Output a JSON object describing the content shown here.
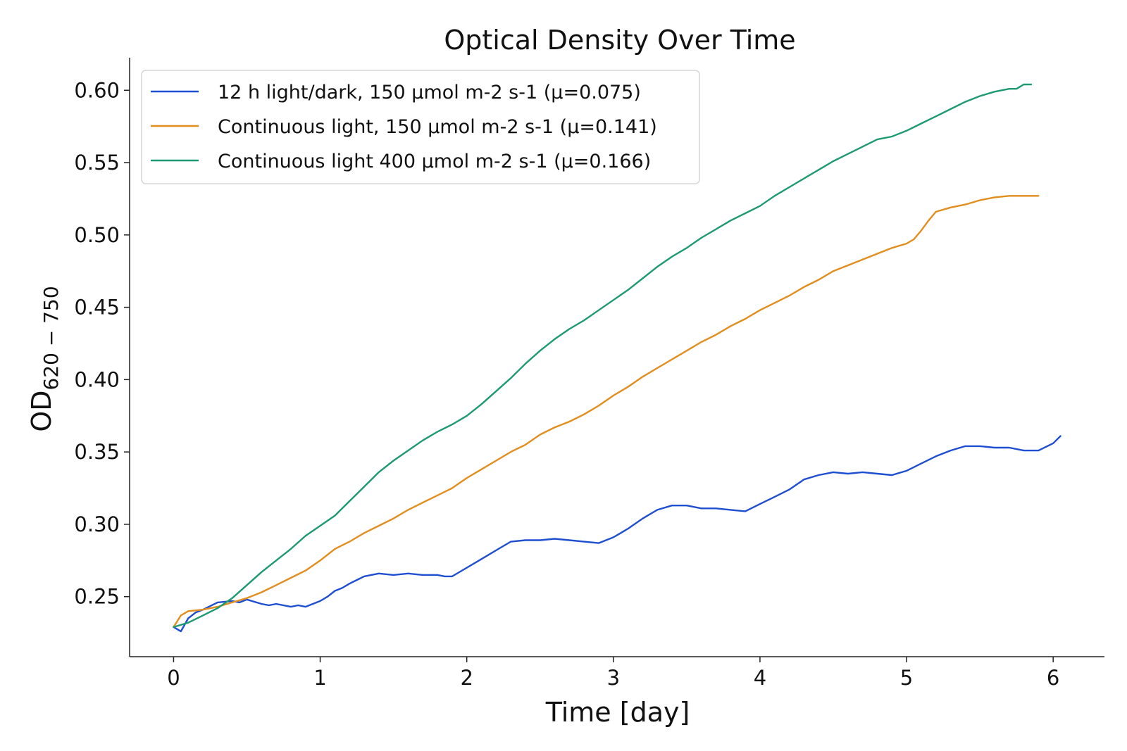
{
  "chart_data": {
    "type": "line",
    "title": "Optical Density Over Time",
    "xlabel": "Time [day]",
    "ylabel": {
      "main": "OD",
      "subscript": "620 − 750"
    },
    "xlim": [
      -0.3,
      6.35
    ],
    "ylim": [
      0.2085,
      0.6225
    ],
    "xticks": [
      0,
      1,
      2,
      3,
      4,
      5,
      6
    ],
    "yticks": [
      0.25,
      0.3,
      0.35,
      0.4,
      0.45,
      0.5,
      0.55,
      0.6
    ],
    "ytick_labels": [
      "0.25",
      "0.30",
      "0.35",
      "0.40",
      "0.45",
      "0.50",
      "0.55",
      "0.60"
    ],
    "legend_position": "upper-left",
    "grid": false,
    "series": [
      {
        "name": "12 h light/dark, 150 µmol m-2 s-1 (µ=0.075)",
        "color": "#1f4fd1",
        "x": [
          0,
          0.05,
          0.1,
          0.15,
          0.2,
          0.3,
          0.4,
          0.45,
          0.5,
          0.6,
          0.65,
          0.7,
          0.8,
          0.85,
          0.9,
          1.0,
          1.05,
          1.1,
          1.15,
          1.2,
          1.3,
          1.4,
          1.5,
          1.6,
          1.7,
          1.8,
          1.85,
          1.9,
          2.0,
          2.1,
          2.2,
          2.3,
          2.4,
          2.5,
          2.6,
          2.7,
          2.8,
          2.9,
          3.0,
          3.05,
          3.1,
          3.2,
          3.3,
          3.4,
          3.5,
          3.6,
          3.7,
          3.8,
          3.9,
          4.0,
          4.1,
          4.2,
          4.3,
          4.4,
          4.5,
          4.6,
          4.7,
          4.8,
          4.9,
          5.0,
          5.1,
          5.2,
          5.3,
          5.4,
          5.5,
          5.6,
          5.7,
          5.8,
          5.9,
          6.0,
          6.05
        ],
        "y": [
          0.229,
          0.226,
          0.235,
          0.239,
          0.241,
          0.246,
          0.247,
          0.246,
          0.248,
          0.245,
          0.244,
          0.245,
          0.243,
          0.244,
          0.243,
          0.247,
          0.25,
          0.254,
          0.256,
          0.259,
          0.264,
          0.266,
          0.265,
          0.266,
          0.265,
          0.265,
          0.264,
          0.264,
          0.27,
          0.276,
          0.282,
          0.288,
          0.289,
          0.289,
          0.29,
          0.289,
          0.288,
          0.287,
          0.291,
          0.294,
          0.297,
          0.304,
          0.31,
          0.313,
          0.313,
          0.311,
          0.311,
          0.31,
          0.309,
          0.314,
          0.319,
          0.324,
          0.331,
          0.334,
          0.336,
          0.335,
          0.336,
          0.335,
          0.334,
          0.337,
          0.342,
          0.347,
          0.351,
          0.354,
          0.354,
          0.353,
          0.353,
          0.351,
          0.351,
          0.356,
          0.361
        ]
      },
      {
        "name": "Continuous light, 150 µmol m-2 s-1 (µ=0.141)",
        "color": "#e18e1e",
        "x": [
          0,
          0.05,
          0.1,
          0.2,
          0.3,
          0.4,
          0.5,
          0.6,
          0.7,
          0.8,
          0.9,
          1.0,
          1.1,
          1.2,
          1.3,
          1.4,
          1.5,
          1.6,
          1.7,
          1.8,
          1.9,
          2.0,
          2.1,
          2.2,
          2.3,
          2.4,
          2.5,
          2.6,
          2.7,
          2.8,
          2.9,
          3.0,
          3.1,
          3.2,
          3.3,
          3.4,
          3.5,
          3.6,
          3.7,
          3.8,
          3.9,
          4.0,
          4.1,
          4.2,
          4.3,
          4.4,
          4.5,
          4.6,
          4.7,
          4.8,
          4.9,
          5.0,
          5.05,
          5.1,
          5.15,
          5.2,
          5.3,
          5.4,
          5.5,
          5.6,
          5.7,
          5.8,
          5.9
        ],
        "y": [
          0.229,
          0.237,
          0.24,
          0.241,
          0.243,
          0.246,
          0.249,
          0.253,
          0.258,
          0.263,
          0.268,
          0.275,
          0.283,
          0.288,
          0.294,
          0.299,
          0.304,
          0.31,
          0.315,
          0.32,
          0.325,
          0.332,
          0.338,
          0.344,
          0.35,
          0.355,
          0.362,
          0.367,
          0.371,
          0.376,
          0.382,
          0.389,
          0.395,
          0.402,
          0.408,
          0.414,
          0.42,
          0.426,
          0.431,
          0.437,
          0.442,
          0.448,
          0.453,
          0.458,
          0.464,
          0.469,
          0.475,
          0.479,
          0.483,
          0.487,
          0.491,
          0.494,
          0.497,
          0.503,
          0.51,
          0.516,
          0.519,
          0.521,
          0.524,
          0.526,
          0.527,
          0.527,
          0.527
        ]
      },
      {
        "name": "Continuous light 400 µmol m-2 s-1 (µ=0.166)",
        "color": "#1e9a72",
        "x": [
          0,
          0.1,
          0.2,
          0.3,
          0.4,
          0.5,
          0.6,
          0.7,
          0.8,
          0.9,
          1.0,
          1.1,
          1.2,
          1.3,
          1.4,
          1.5,
          1.6,
          1.7,
          1.8,
          1.9,
          2.0,
          2.1,
          2.2,
          2.3,
          2.4,
          2.5,
          2.6,
          2.7,
          2.8,
          2.9,
          3.0,
          3.1,
          3.2,
          3.3,
          3.4,
          3.5,
          3.6,
          3.7,
          3.8,
          3.9,
          4.0,
          4.1,
          4.2,
          4.3,
          4.4,
          4.5,
          4.6,
          4.7,
          4.8,
          4.9,
          5.0,
          5.1,
          5.2,
          5.3,
          5.4,
          5.5,
          5.6,
          5.7,
          5.75,
          5.8,
          5.85
        ],
        "y": [
          0.229,
          0.232,
          0.237,
          0.242,
          0.249,
          0.258,
          0.267,
          0.275,
          0.283,
          0.292,
          0.299,
          0.306,
          0.316,
          0.326,
          0.336,
          0.344,
          0.351,
          0.358,
          0.364,
          0.369,
          0.375,
          0.383,
          0.392,
          0.401,
          0.411,
          0.42,
          0.428,
          0.435,
          0.441,
          0.448,
          0.455,
          0.462,
          0.47,
          0.478,
          0.485,
          0.491,
          0.498,
          0.504,
          0.51,
          0.515,
          0.52,
          0.527,
          0.533,
          0.539,
          0.545,
          0.551,
          0.556,
          0.561,
          0.566,
          0.568,
          0.572,
          0.577,
          0.582,
          0.587,
          0.592,
          0.596,
          0.599,
          0.601,
          0.601,
          0.604,
          0.604
        ]
      }
    ]
  }
}
